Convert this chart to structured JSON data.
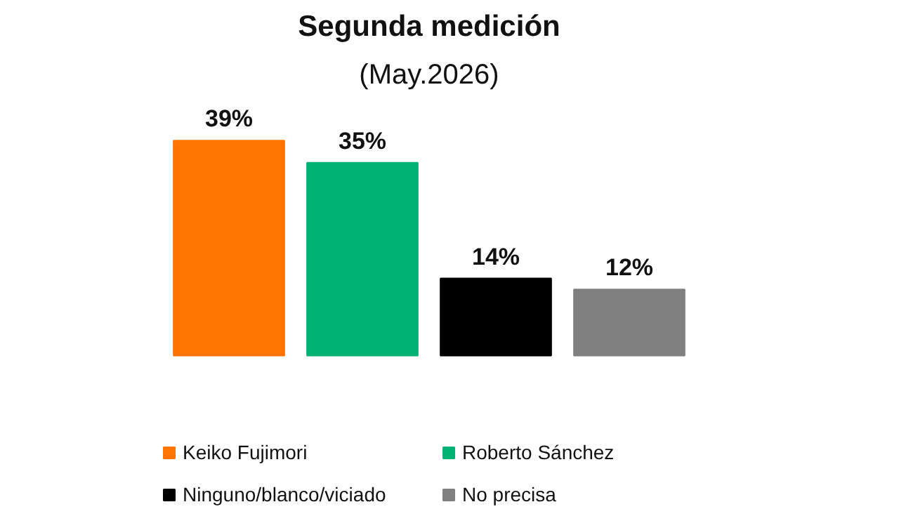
{
  "chart_data": {
    "type": "bar",
    "title": "Segunda medición",
    "subtitle": "(May.2026)",
    "categories": [
      null
    ],
    "series": [
      {
        "name": "Keiko Fujimori",
        "color": "#ff7300",
        "values": [
          39
        ],
        "value_labels": [
          "39%"
        ]
      },
      {
        "name": "Roberto Sánchez",
        "color": "#00b374",
        "values": [
          35
        ],
        "value_labels": [
          "35%"
        ]
      },
      {
        "name": "Ninguno/blanco/viciado",
        "color": "#000000",
        "values": [
          14
        ],
        "value_labels": [
          "14%"
        ]
      },
      {
        "name": "No precisa",
        "color": "#808080",
        "values": [
          12
        ],
        "value_labels": [
          "12%"
        ]
      }
    ],
    "tick_labels": false,
    "legend": "bottom"
  }
}
